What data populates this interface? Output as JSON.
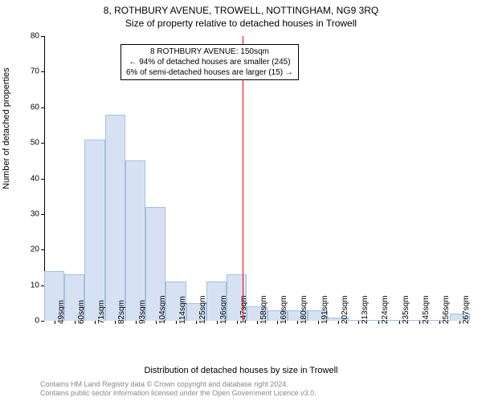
{
  "title_main": "8, ROTHBURY AVENUE, TROWELL, NOTTINGHAM, NG9 3RQ",
  "title_sub": "Size of property relative to detached houses in Trowell",
  "y_axis_label": "Number of detached properties",
  "x_axis_label": "Distribution of detached houses by size in Trowell",
  "footer_line1": "Contains HM Land Registry data © Crown copyright and database right 2024.",
  "footer_line2": "Contains public sector information licensed under the Open Government Licence v3.0.",
  "chart": {
    "type": "histogram",
    "ylim": [
      0,
      80
    ],
    "ytick_step": 10,
    "y_ticks": [
      0,
      10,
      20,
      30,
      40,
      50,
      60,
      70,
      80
    ],
    "x_labels": [
      "49sqm",
      "60sqm",
      "71sqm",
      "82sqm",
      "93sqm",
      "104sqm",
      "114sqm",
      "125sqm",
      "136sqm",
      "147sqm",
      "158sqm",
      "169sqm",
      "180sqm",
      "191sqm",
      "202sqm",
      "213sqm",
      "224sqm",
      "235sqm",
      "245sqm",
      "256sqm",
      "267sqm"
    ],
    "values": [
      14,
      13,
      51,
      58,
      45,
      32,
      11,
      5,
      11,
      13,
      4,
      3,
      3,
      3,
      1,
      0,
      0,
      0,
      0,
      0,
      2
    ],
    "bar_color": "#d6e2f3",
    "bar_border_color": "#a7bfe0",
    "bar_width_ratio": 1.0,
    "background_color": "#ffffff",
    "axis_color": "#000000",
    "tick_fontsize": 10,
    "label_fontsize": 11,
    "title_fontsize": 12,
    "reference_line": {
      "index": 9.3,
      "color": "#ff0000"
    },
    "annotation": {
      "line1": "8 ROTHBURY AVENUE: 150sqm",
      "line2": "← 94% of detached houses are smaller (245)",
      "line3": "6% of semi-detached houses are larger (15) →",
      "border_color": "#000000",
      "bg_color": "#ffffff"
    }
  }
}
